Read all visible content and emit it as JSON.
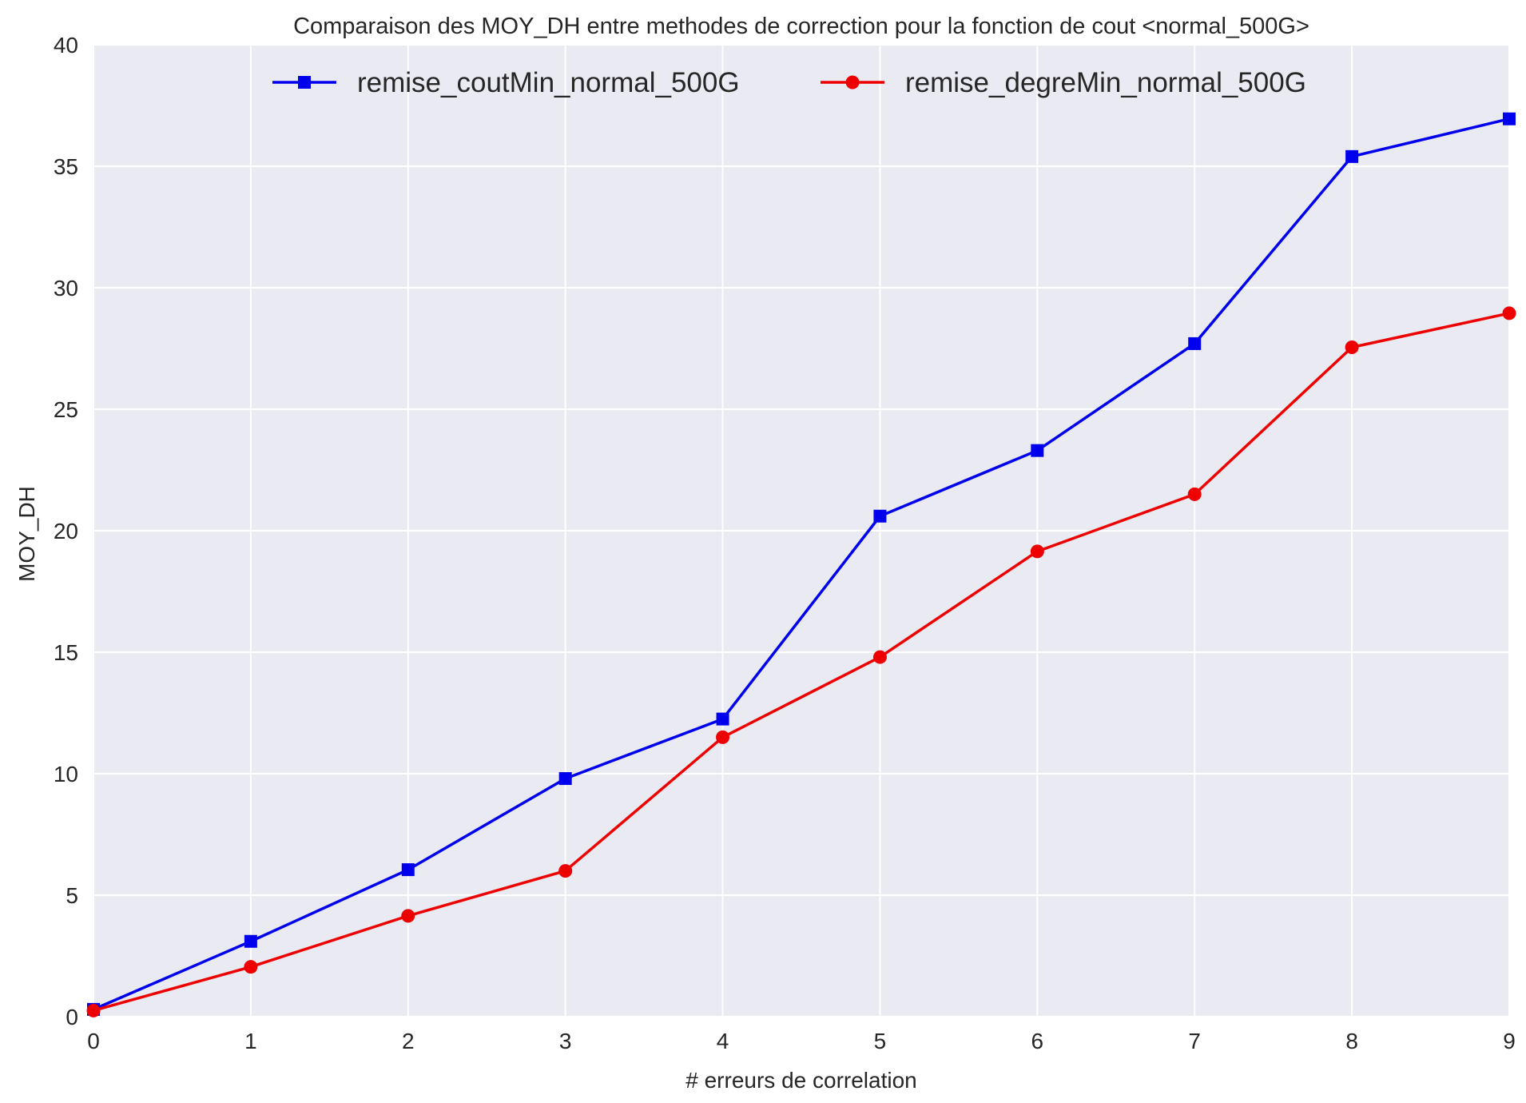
{
  "chart_data": {
    "type": "line",
    "title": "Comparaison des MOY_DH entre methodes de correction pour la fonction de cout <normal_500G>",
    "xlabel": "# erreurs de correlation",
    "ylabel": "MOY_DH",
    "x": [
      0,
      1,
      2,
      3,
      4,
      5,
      6,
      7,
      8,
      9
    ],
    "xlim": [
      0,
      9
    ],
    "ylim": [
      0,
      40
    ],
    "xticks": [
      0,
      1,
      2,
      3,
      4,
      5,
      6,
      7,
      8,
      9
    ],
    "yticks": [
      0,
      5,
      10,
      15,
      20,
      25,
      30,
      35,
      40
    ],
    "grid": true,
    "legend_position": "top-center",
    "background_color": "#EAEAF2",
    "series": [
      {
        "name": "remise_coutMin_normal_500G",
        "color": "#0000EE",
        "marker": "square",
        "values": [
          0.3,
          3.1,
          6.05,
          9.8,
          12.25,
          20.6,
          23.3,
          27.7,
          35.4,
          36.95
        ]
      },
      {
        "name": "remise_degreMin_normal_500G",
        "color": "#EE0000",
        "marker": "circle",
        "values": [
          0.25,
          2.05,
          4.15,
          6.0,
          11.5,
          14.8,
          19.15,
          21.5,
          27.55,
          28.95
        ]
      }
    ]
  }
}
